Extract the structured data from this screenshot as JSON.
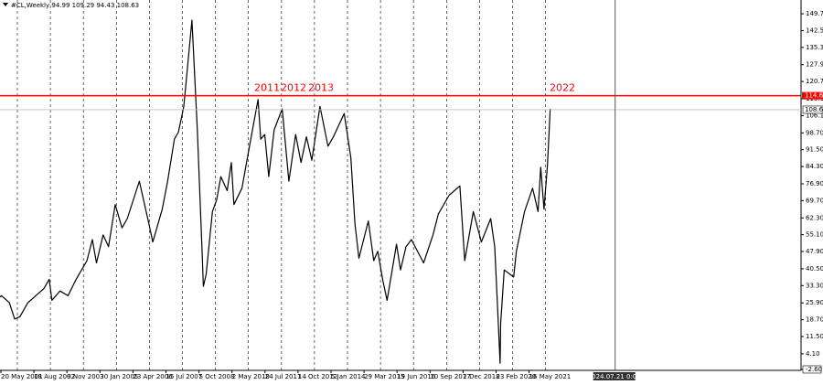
{
  "chart_data": {
    "type": "line",
    "title": "#CL,Weekly  94.99 109.29 94.43 108.63",
    "ylim": [
      -3.0,
      155.6
    ],
    "yticks": [
      {
        "value": 149.7,
        "label": "149.70"
      },
      {
        "value": 142.5,
        "label": "142.50"
      },
      {
        "value": 135.3,
        "label": "135.30"
      },
      {
        "value": 127.9,
        "label": "127.90"
      },
      {
        "value": 120.7,
        "label": "120.70"
      },
      {
        "value": 113.3,
        "label": "113.30"
      },
      {
        "value": 106.1,
        "label": "106.10"
      },
      {
        "value": 98.7,
        "label": "98.70"
      },
      {
        "value": 91.5,
        "label": "91.50"
      },
      {
        "value": 84.3,
        "label": "84.30"
      },
      {
        "value": 76.9,
        "label": "76.90"
      },
      {
        "value": 69.7,
        "label": "69.70"
      },
      {
        "value": 62.3,
        "label": "62.30"
      },
      {
        "value": 55.1,
        "label": "55.10"
      },
      {
        "value": 47.9,
        "label": "47.90"
      },
      {
        "value": 40.5,
        "label": "40.50"
      },
      {
        "value": 33.3,
        "label": "33.30"
      },
      {
        "value": 25.9,
        "label": "25.90"
      },
      {
        "value": 18.7,
        "label": "18.70"
      },
      {
        "value": 11.5,
        "label": "11.50"
      },
      {
        "value": 4.1,
        "label": "4.10"
      },
      {
        "value": -2.6,
        "label": "-2.60"
      }
    ],
    "xticks": [
      {
        "value": 2001.38,
        "label": "20 May 2001"
      },
      {
        "value": 2002.63,
        "label": "18 Aug 2002"
      },
      {
        "value": 2003.86,
        "label": "9 Nov 2003"
      },
      {
        "value": 2005.08,
        "label": "30 Jan 2005"
      },
      {
        "value": 2006.31,
        "label": "23 Apr 2006"
      },
      {
        "value": 2007.54,
        "label": "15 Jul 2007"
      },
      {
        "value": 2008.76,
        "label": "5 Oct 2008"
      },
      {
        "value": 2010.33,
        "label": "2 May 2010"
      },
      {
        "value": 2011.56,
        "label": "24 Jul 2011"
      },
      {
        "value": 2012.79,
        "label": "14 Oct 2012"
      },
      {
        "value": 2014.01,
        "label": "5 Jan 2014"
      },
      {
        "value": 2015.24,
        "label": "29 Mar 2015"
      },
      {
        "value": 2016.47,
        "label": "19 Jun 2016"
      },
      {
        "value": 2017.69,
        "label": "10 Sep 2017"
      },
      {
        "value": 2018.92,
        "label": "2 Dec 2018"
      },
      {
        "value": 2020.15,
        "label": "23 Feb 2020"
      },
      {
        "value": 2021.37,
        "label": "16 May 2021"
      }
    ],
    "series": [
      {
        "color": "#000000",
        "x": [
          2001.0,
          2001.2,
          2001.4,
          2001.7,
          2001.9,
          2002.1,
          2002.4,
          2002.7,
          2003.0,
          2003.2,
          2003.3,
          2003.6,
          2003.9,
          2004.2,
          2004.4,
          2004.6,
          2004.8,
          2004.95,
          2005.2,
          2005.4,
          2005.65,
          2005.9,
          2006.1,
          2006.55,
          2006.9,
          2007.05,
          2007.4,
          2007.6,
          2007.85,
          2008.0,
          2008.2,
          2008.5,
          2008.7,
          2008.9,
          2008.97,
          2009.1,
          2009.4,
          2009.6,
          2009.8,
          2010.1,
          2010.3,
          2010.4,
          2010.7,
          2010.95,
          2011.3,
          2011.4,
          2011.55,
          2011.7,
          2011.9,
          2012.2,
          2012.45,
          2012.7,
          2012.9,
          2013.1,
          2013.3,
          2013.6,
          2013.9,
          2014.1,
          2014.5,
          2014.75,
          2014.9,
          2015.05,
          2015.4,
          2015.6,
          2015.75,
          2015.95,
          2016.1,
          2016.45,
          2016.6,
          2016.8,
          2017.0,
          2017.45,
          2017.8,
          2018.0,
          2018.4,
          2018.8,
          2018.98,
          2019.3,
          2019.6,
          2019.95,
          2020.1,
          2020.2,
          2020.3,
          2020.32,
          2020.45,
          2020.8,
          2020.9,
          2021.2,
          2021.5,
          2021.7,
          2021.8,
          2021.92,
          2022.05,
          2022.15
        ],
        "values": [
          28,
          27,
          29,
          26,
          19,
          20,
          26,
          29,
          32,
          36,
          27,
          31,
          29,
          36,
          40,
          44,
          53,
          43,
          55,
          50,
          68,
          58,
          62,
          78,
          60,
          52,
          66,
          78,
          96,
          99,
          110,
          147,
          100,
          50,
          33,
          38,
          65,
          70,
          80,
          74,
          86,
          68,
          75,
          91,
          113,
          96,
          98,
          80,
          100,
          109,
          78,
          98,
          86,
          97,
          87,
          110,
          93,
          97,
          107,
          88,
          60,
          45,
          61,
          44,
          48,
          35,
          27,
          51,
          40,
          50,
          53,
          43,
          55,
          64,
          72,
          76,
          44,
          65,
          52,
          62,
          50,
          25,
          0,
          17,
          40,
          37,
          48,
          65,
          75,
          65,
          84,
          66,
          85,
          109
        ]
      }
    ],
    "annotations": [
      "2011",
      "2012",
      "2013",
      "2022"
    ],
    "hline": {
      "value": 114.62,
      "label": "114.62",
      "color": "#ff0000"
    },
    "last_price": {
      "value": 108.63,
      "label": "108.63"
    },
    "crosshair": {
      "value": 2024.55,
      "label": "2024.07.21 0:00"
    }
  }
}
